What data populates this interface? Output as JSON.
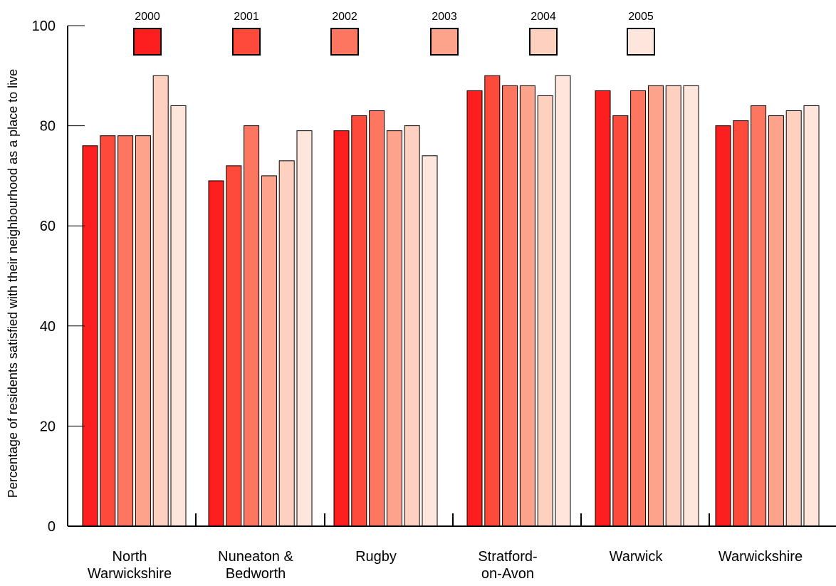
{
  "chart_data": {
    "type": "bar",
    "title": "",
    "xlabel": "",
    "ylabel": "Percentage of residents satisfied with their neighbourhood as a place to live",
    "ylim": [
      0,
      100
    ],
    "yticks": [
      "0",
      "20",
      "40",
      "60",
      "80",
      "100"
    ],
    "grid": false,
    "legend_position": "top",
    "categories": [
      [
        "North",
        "Warwickshire"
      ],
      [
        "Nuneaton &",
        "Bedworth"
      ],
      [
        "Rugby"
      ],
      [
        "Stratford-",
        "on-Avon"
      ],
      [
        "Warwick"
      ],
      [
        "Warwickshire"
      ]
    ],
    "series": [
      {
        "name": "2000",
        "color": "#fc1e1e",
        "values": [
          76,
          69,
          79,
          87,
          87,
          80
        ]
      },
      {
        "name": "2001",
        "color": "#fd4a3a",
        "values": [
          78,
          72,
          82,
          90,
          82,
          81
        ]
      },
      {
        "name": "2002",
        "color": "#fd7660",
        "values": [
          78,
          80,
          83,
          88,
          87,
          84
        ]
      },
      {
        "name": "2003",
        "color": "#fea38b",
        "values": [
          78,
          70,
          79,
          88,
          88,
          82
        ]
      },
      {
        "name": "2004",
        "color": "#fed0bf",
        "values": [
          90,
          73,
          80,
          86,
          88,
          83
        ]
      },
      {
        "name": "2005",
        "color": "#ffe6dc",
        "values": [
          84,
          79,
          74,
          90,
          88,
          84
        ]
      }
    ]
  }
}
